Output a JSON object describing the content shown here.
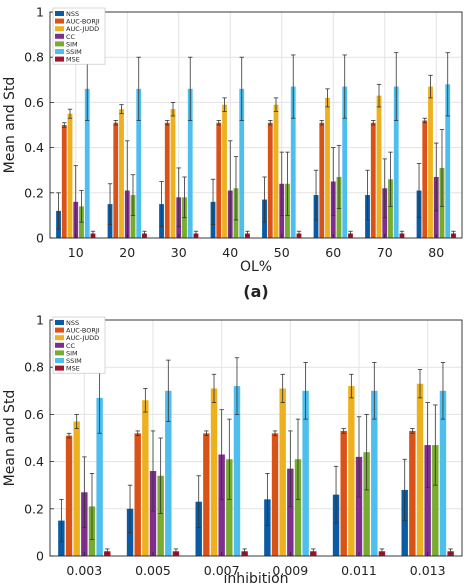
{
  "chart_data": [
    {
      "type": "bar",
      "panel_label": "(a)",
      "xlabel": "OL%",
      "ylabel": "Mean and Std",
      "ylim": [
        0,
        1
      ],
      "yticks": [
        0,
        0.2,
        0.4,
        0.6,
        0.8,
        1
      ],
      "ytick_labels": [
        "0",
        "0.2",
        "0.4",
        "0.6",
        "0.8",
        "1"
      ],
      "grid": true,
      "legend_position": "top-left",
      "categories": [
        "10",
        "20",
        "30",
        "40",
        "50",
        "60",
        "70",
        "80"
      ],
      "series": [
        {
          "name": "NSS",
          "color": "#0a5ba3",
          "values": [
            0.12,
            0.15,
            0.15,
            0.16,
            0.17,
            0.19,
            0.19,
            0.21
          ],
          "std": [
            0.08,
            0.09,
            0.1,
            0.1,
            0.1,
            0.11,
            0.11,
            0.12
          ]
        },
        {
          "name": "AUC-BORJI",
          "color": "#d95319",
          "values": [
            0.5,
            0.51,
            0.51,
            0.51,
            0.51,
            0.51,
            0.51,
            0.52
          ],
          "std": [
            0.01,
            0.01,
            0.01,
            0.01,
            0.01,
            0.01,
            0.01,
            0.01
          ]
        },
        {
          "name": "AUC-JUDD",
          "color": "#edb120",
          "values": [
            0.55,
            0.57,
            0.57,
            0.59,
            0.59,
            0.62,
            0.63,
            0.67
          ],
          "std": [
            0.02,
            0.02,
            0.03,
            0.03,
            0.03,
            0.04,
            0.05,
            0.05
          ]
        },
        {
          "name": "CC",
          "color": "#7e2f8e",
          "values": [
            0.16,
            0.21,
            0.18,
            0.21,
            0.24,
            0.25,
            0.22,
            0.27
          ],
          "std": [
            0.16,
            0.22,
            0.13,
            0.22,
            0.14,
            0.15,
            0.13,
            0.15
          ]
        },
        {
          "name": "SIM",
          "color": "#77ac30",
          "values": [
            0.14,
            0.19,
            0.18,
            0.22,
            0.24,
            0.27,
            0.26,
            0.31
          ],
          "std": [
            0.07,
            0.09,
            0.09,
            0.14,
            0.14,
            0.14,
            0.12,
            0.17
          ]
        },
        {
          "name": "SSIM",
          "color": "#4dbeee",
          "values": [
            0.66,
            0.66,
            0.66,
            0.66,
            0.67,
            0.67,
            0.67,
            0.68
          ],
          "std": [
            0.14,
            0.14,
            0.14,
            0.14,
            0.14,
            0.14,
            0.15,
            0.14
          ]
        },
        {
          "name": "MSE",
          "color": "#a2142f",
          "values": [
            0.02,
            0.02,
            0.02,
            0.02,
            0.02,
            0.02,
            0.02,
            0.02
          ],
          "std": [
            0.01,
            0.01,
            0.01,
            0.01,
            0.01,
            0.01,
            0.01,
            0.01
          ]
        }
      ]
    },
    {
      "type": "bar",
      "panel_label": "",
      "xlabel": "inhibition",
      "ylabel": "Mean and Std",
      "ylim": [
        0,
        1
      ],
      "yticks": [
        0,
        0.2,
        0.4,
        0.6,
        0.8,
        1
      ],
      "ytick_labels": [
        "0",
        "0.2",
        "0.4",
        "0.6",
        "0.8",
        "1"
      ],
      "grid": true,
      "legend_position": "top-left",
      "categories": [
        "0.003",
        "0.005",
        "0.007",
        "0.009",
        "0.011",
        "0.013"
      ],
      "series": [
        {
          "name": "NSS",
          "color": "#0a5ba3",
          "values": [
            0.15,
            0.2,
            0.23,
            0.24,
            0.26,
            0.28
          ],
          "std": [
            0.09,
            0.1,
            0.11,
            0.11,
            0.12,
            0.13
          ]
        },
        {
          "name": "AUC-BORJI",
          "color": "#d95319",
          "values": [
            0.51,
            0.52,
            0.52,
            0.52,
            0.53,
            0.53
          ],
          "std": [
            0.01,
            0.01,
            0.01,
            0.01,
            0.01,
            0.01
          ]
        },
        {
          "name": "AUC-JUDD",
          "color": "#edb120",
          "values": [
            0.57,
            0.66,
            0.71,
            0.71,
            0.72,
            0.73
          ],
          "std": [
            0.03,
            0.05,
            0.06,
            0.06,
            0.05,
            0.06
          ]
        },
        {
          "name": "CC",
          "color": "#7e2f8e",
          "values": [
            0.27,
            0.36,
            0.43,
            0.37,
            0.42,
            0.47
          ],
          "std": [
            0.15,
            0.17,
            0.19,
            0.16,
            0.17,
            0.18
          ]
        },
        {
          "name": "SIM",
          "color": "#77ac30",
          "values": [
            0.21,
            0.34,
            0.41,
            0.41,
            0.44,
            0.47
          ],
          "std": [
            0.14,
            0.16,
            0.17,
            0.17,
            0.16,
            0.17
          ]
        },
        {
          "name": "SSIM",
          "color": "#4dbeee",
          "values": [
            0.67,
            0.7,
            0.72,
            0.7,
            0.7,
            0.7
          ],
          "std": [
            0.15,
            0.13,
            0.12,
            0.12,
            0.12,
            0.12
          ]
        },
        {
          "name": "MSE",
          "color": "#a2142f",
          "values": [
            0.02,
            0.02,
            0.02,
            0.02,
            0.02,
            0.02
          ],
          "std": [
            0.01,
            0.01,
            0.01,
            0.01,
            0.01,
            0.01
          ]
        }
      ]
    }
  ]
}
